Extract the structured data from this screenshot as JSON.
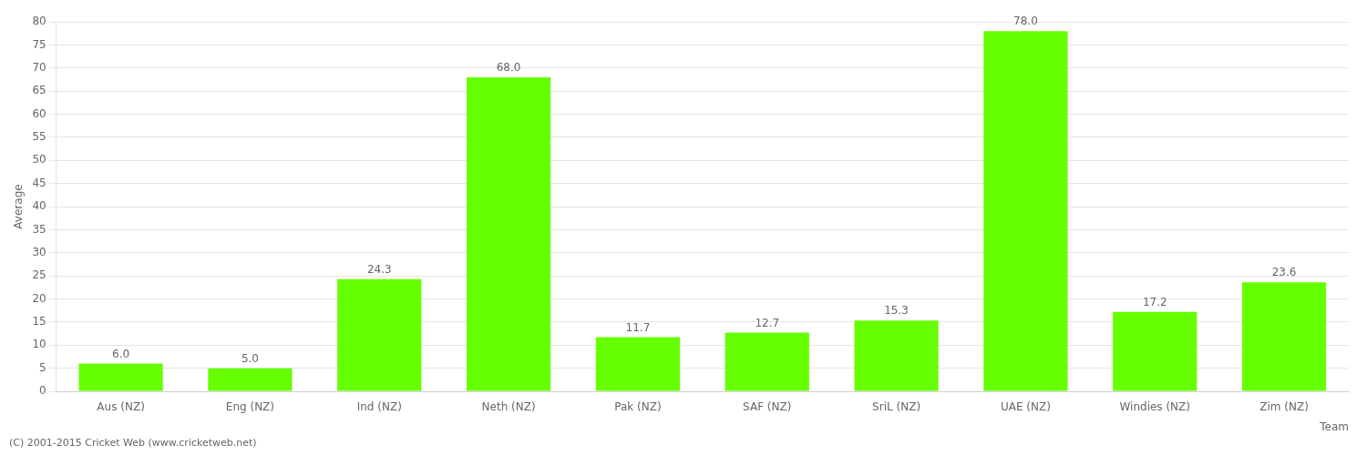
{
  "chart_data": {
    "type": "bar",
    "categories": [
      "Aus (NZ)",
      "Eng (NZ)",
      "Ind (NZ)",
      "Neth (NZ)",
      "Pak (NZ)",
      "SAF (NZ)",
      "SriL (NZ)",
      "UAE (NZ)",
      "Windies (NZ)",
      "Zim (NZ)"
    ],
    "values": [
      6.0,
      5.0,
      24.3,
      68.0,
      11.7,
      12.7,
      15.3,
      78.0,
      17.2,
      23.6
    ],
    "value_labels": [
      "6.0",
      "5.0",
      "24.3",
      "68.0",
      "11.7",
      "12.7",
      "15.3",
      "78.0",
      "17.2",
      "23.6"
    ],
    "data_labels": true,
    "color": "#66ff00",
    "ylabel": "Average",
    "xlabel": "Team",
    "ylim": [
      0,
      80
    ],
    "yticks": [
      0,
      5,
      10,
      15,
      20,
      25,
      30,
      35,
      40,
      45,
      50,
      55,
      60,
      65,
      70,
      75,
      80
    ],
    "grid": true,
    "annotations": [
      "(C) 2001-2015 Cricket Web (www.cricketweb.net)"
    ]
  }
}
